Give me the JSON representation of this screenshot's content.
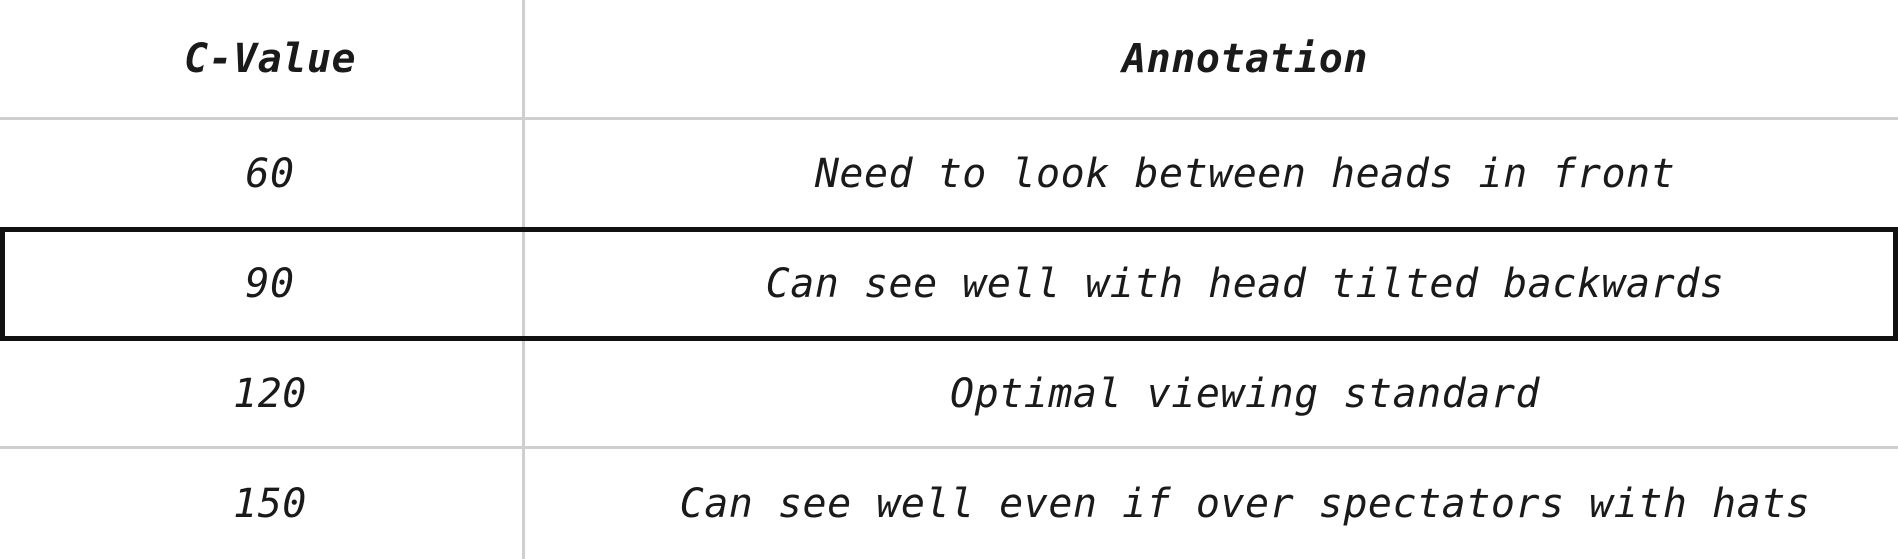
{
  "table": {
    "headers": [
      "C-Value",
      "Annotation"
    ],
    "rows": [
      {
        "c_value": "60",
        "annotation": "Need to look between heads in front"
      },
      {
        "c_value": "90",
        "annotation": "Can see well with head tilted backwards",
        "highlighted": true
      },
      {
        "c_value": "120",
        "annotation": "Optimal viewing standard"
      },
      {
        "c_value": "150",
        "annotation": "Can see well even if over spectators with hats"
      }
    ]
  },
  "colors": {
    "grid_line": "#cfcfcf",
    "highlight_border": "#111111",
    "text": "#1a1a1a"
  }
}
